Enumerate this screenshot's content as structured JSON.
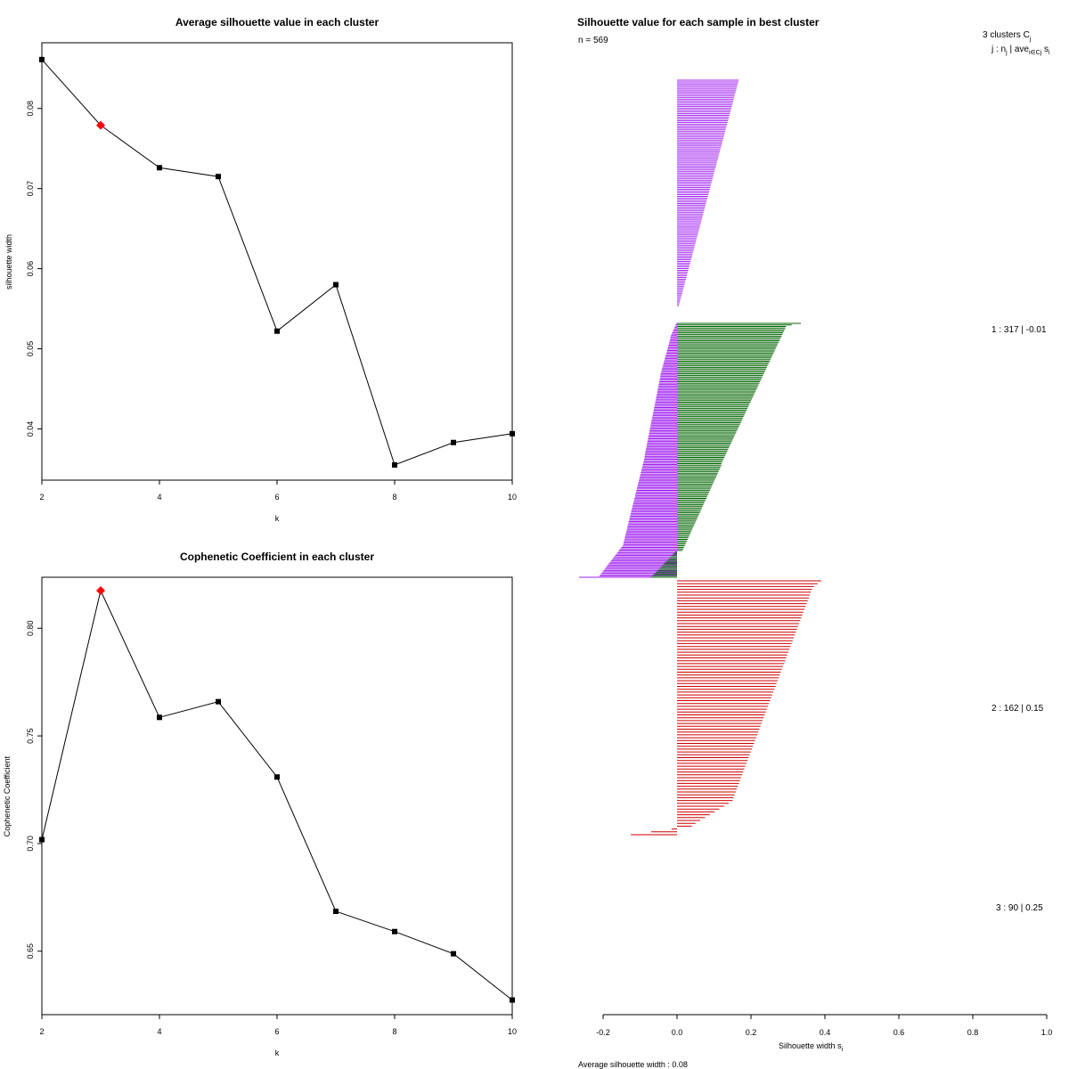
{
  "chart_data": [
    {
      "type": "line",
      "title": "Average silhouette value in each cluster",
      "xlabel": "k",
      "ylabel": "silhouette width",
      "x": [
        2,
        3,
        4,
        5,
        6,
        7,
        8,
        9,
        10
      ],
      "values": [
        0.0861,
        0.0779,
        0.0726,
        0.0715,
        0.0522,
        0.058,
        0.0355,
        0.0383,
        0.0394
      ],
      "highlight_k": 3,
      "xlim": [
        2,
        10
      ],
      "ylim": [
        0.0336,
        0.0882
      ],
      "xticks": [
        "2",
        "4",
        "6",
        "8",
        "10"
      ],
      "yticks": [
        "0.04",
        "0.05",
        "0.06",
        "0.07",
        "0.08"
      ],
      "colors": {
        "line": "#000000",
        "point": "#000000",
        "highlight": "#ff0000"
      }
    },
    {
      "type": "line",
      "title": "Cophenetic Coefficient in each cluster",
      "xlabel": "k",
      "ylabel": "Cophenetic Coefficient",
      "x": [
        2,
        3,
        4,
        5,
        6,
        7,
        8,
        9,
        10
      ],
      "values": [
        0.7018,
        0.8175,
        0.7586,
        0.7659,
        0.7309,
        0.6685,
        0.6591,
        0.6488,
        0.6273
      ],
      "highlight_k": 3,
      "xlim": [
        2,
        10
      ],
      "ylim": [
        0.6205,
        0.8237
      ],
      "xticks": [
        "2",
        "4",
        "6",
        "8",
        "10"
      ],
      "yticks": [
        "0.65",
        "0.70",
        "0.75",
        "0.80"
      ],
      "colors": {
        "line": "#000000",
        "point": "#000000",
        "highlight": "#ff0000"
      }
    },
    {
      "type": "bar",
      "orientation": "horizontal",
      "title": "Silhouette value for each sample in best cluster",
      "n_label": "n = 569",
      "header_line1": "3  clusters  C",
      "header_sub1": "j",
      "header_line2": "j :  n",
      "header_sub2a": "j",
      "header_mid2": " | ave",
      "header_sub2b": "i∈Cj",
      "header_end2": "  s",
      "header_sub2c": "i",
      "xlabel": "Silhouette width s",
      "xlabel_sub": "i",
      "xlim": [
        -0.2,
        1.0
      ],
      "xticks": [
        "-0.2",
        "0.0",
        "0.2",
        "0.4",
        "0.6",
        "0.8",
        "1.0"
      ],
      "footer": "Average silhouette width :  0.08",
      "clusters": [
        {
          "id": 1,
          "n": 317,
          "ave": -0.01,
          "label": "1 :   317  |  -0.01",
          "color": "#a020f0",
          "segments": [
            {
              "count": 129,
              "from": 0.167,
              "to": 0.005
            },
            {
              "count": 11,
              "from": -0.002,
              "to": -0.018
            },
            {
              "count": 28,
              "from": -0.018,
              "to": -0.045
            },
            {
              "count": 60,
              "from": -0.045,
              "to": -0.088
            },
            {
              "count": 64,
              "from": -0.088,
              "to": -0.145
            },
            {
              "count": 24,
              "from": -0.145,
              "to": -0.21
            },
            {
              "count": 1,
              "from": -0.265,
              "to": -0.265
            }
          ]
        },
        {
          "id": 2,
          "n": 162,
          "ave": 0.15,
          "label": "2 :   162  |  0.15",
          "color": "#006400",
          "segments": [
            {
              "count": 2,
              "from": 0.335,
              "to": 0.31
            },
            {
              "count": 88,
              "from": 0.295,
              "to": 0.12
            },
            {
              "count": 55,
              "from": 0.12,
              "to": 0.015
            },
            {
              "count": 17,
              "from": -0.005,
              "to": -0.07
            }
          ]
        },
        {
          "id": 3,
          "n": 90,
          "ave": 0.25,
          "label": "3 :   90  |  0.25",
          "color": "#cd0000",
          "segments": [
            {
              "count": 3,
              "from": 0.39,
              "to": 0.37
            },
            {
              "count": 75,
              "from": 0.365,
              "to": 0.15
            },
            {
              "count": 8,
              "from": 0.14,
              "to": 0.05
            },
            {
              "count": 4,
              "from": 0.04,
              "to": -0.125
            }
          ]
        }
      ]
    }
  ]
}
